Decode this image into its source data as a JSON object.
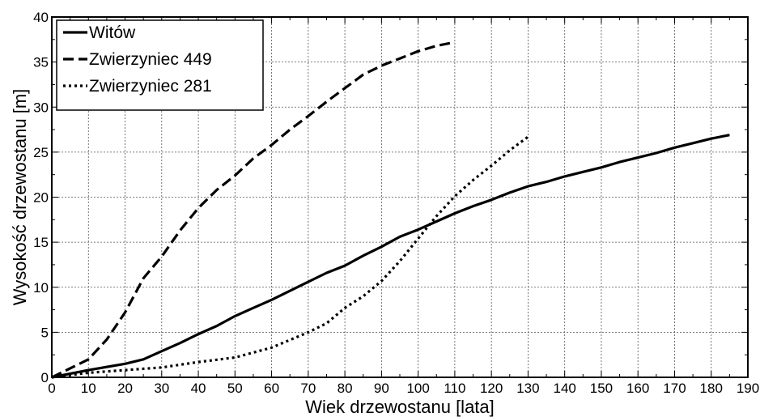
{
  "chart_data": {
    "type": "line",
    "title": "",
    "xlabel": "Wiek drzewostanu [lata]",
    "ylabel": "Wysokość drzewostanu [m]",
    "xlim": [
      0,
      190
    ],
    "ylim": [
      0,
      40
    ],
    "x_ticks": [
      0,
      10,
      20,
      30,
      40,
      50,
      60,
      70,
      80,
      90,
      100,
      110,
      120,
      130,
      140,
      150,
      160,
      170,
      180,
      190
    ],
    "y_ticks": [
      0,
      5,
      10,
      15,
      20,
      25,
      30,
      35,
      40
    ],
    "x_minor_step": 5,
    "y_minor_step": 2.5,
    "grid": true,
    "legend_position": "top-left",
    "series": [
      {
        "name": "Witów",
        "style": "solid",
        "color": "#000000",
        "x": [
          0,
          10,
          20,
          25,
          30,
          35,
          40,
          45,
          50,
          55,
          60,
          65,
          70,
          75,
          80,
          85,
          90,
          95,
          100,
          105,
          110,
          115,
          120,
          125,
          130,
          135,
          140,
          145,
          150,
          155,
          160,
          165,
          170,
          175,
          180,
          185
        ],
        "y": [
          0,
          0.8,
          1.5,
          2.0,
          2.9,
          3.8,
          4.8,
          5.7,
          6.8,
          7.7,
          8.6,
          9.6,
          10.6,
          11.6,
          12.4,
          13.5,
          14.5,
          15.6,
          16.4,
          17.3,
          18.2,
          19.0,
          19.7,
          20.5,
          21.2,
          21.7,
          22.3,
          22.8,
          23.3,
          23.9,
          24.4,
          24.9,
          25.5,
          26.0,
          26.5,
          26.9
        ]
      },
      {
        "name": "Zwierzyniec 449",
        "style": "dashed",
        "color": "#000000",
        "x": [
          0,
          10,
          15,
          20,
          25,
          30,
          35,
          40,
          45,
          50,
          55,
          60,
          65,
          70,
          75,
          80,
          85,
          90,
          95,
          100,
          105,
          110
        ],
        "y": [
          0,
          2.0,
          4.2,
          7.2,
          11.0,
          13.4,
          16.3,
          18.8,
          20.8,
          22.4,
          24.3,
          25.8,
          27.5,
          29.0,
          30.6,
          32.1,
          33.6,
          34.6,
          35.4,
          36.2,
          36.8,
          37.2
        ]
      },
      {
        "name": "Zwierzyniec 281",
        "style": "dotted",
        "color": "#000000",
        "x": [
          0,
          10,
          20,
          30,
          40,
          50,
          60,
          70,
          75,
          80,
          85,
          90,
          95,
          100,
          105,
          110,
          115,
          120,
          125,
          130
        ],
        "y": [
          0,
          0.5,
          0.8,
          1.1,
          1.7,
          2.2,
          3.3,
          5.0,
          6.0,
          7.7,
          9.0,
          10.7,
          12.9,
          15.4,
          17.9,
          20.1,
          21.9,
          23.5,
          25.2,
          26.7
        ]
      }
    ]
  }
}
